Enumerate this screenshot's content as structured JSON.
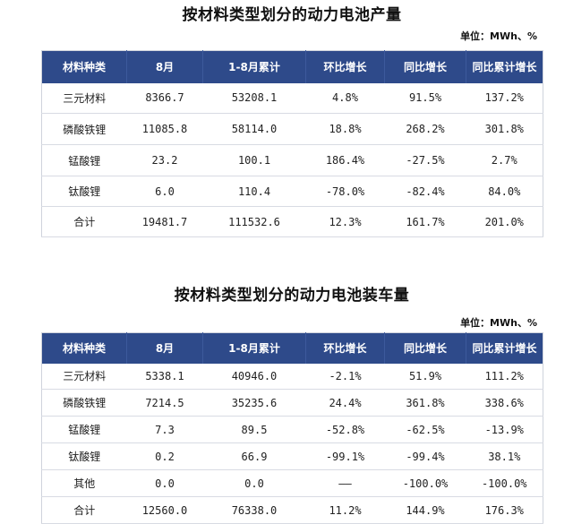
{
  "section1": {
    "title": "按材料类型划分的动力电池产量",
    "unit": "单位：MWh、%",
    "headers": [
      "材料种类",
      "8月",
      "1-8月累计",
      "环比增长",
      "同比增长",
      "同比累计增长"
    ],
    "rows": [
      [
        "三元材料",
        "8366.7",
        "53208.1",
        "4.8%",
        "91.5%",
        "137.2%"
      ],
      [
        "磷酸铁锂",
        "11085.8",
        "58114.0",
        "18.8%",
        "268.2%",
        "301.8%"
      ],
      [
        "锰酸锂",
        "23.2",
        "100.1",
        "186.4%",
        "-27.5%",
        "2.7%"
      ],
      [
        "钛酸锂",
        "6.0",
        "110.4",
        "-78.0%",
        "-82.4%",
        "84.0%"
      ],
      [
        "合计",
        "19481.7",
        "111532.6",
        "12.3%",
        "161.7%",
        "201.0%"
      ]
    ]
  },
  "section2": {
    "title": "按材料类型划分的动力电池装车量",
    "unit": "单位：MWh、%",
    "headers": [
      "材料种类",
      "8月",
      "1-8月累计",
      "环比增长",
      "同比增长",
      "同比累计增长"
    ],
    "rows": [
      [
        "三元材料",
        "5338.1",
        "40946.0",
        "-2.1%",
        "51.9%",
        "111.2%"
      ],
      [
        "磷酸铁锂",
        "7214.5",
        "35235.6",
        "24.4%",
        "361.8%",
        "338.6%"
      ],
      [
        "锰酸锂",
        "7.3",
        "89.5",
        "-52.8%",
        "-62.5%",
        "-13.9%"
      ],
      [
        "钛酸锂",
        "0.2",
        "66.9",
        "-99.1%",
        "-99.4%",
        "38.1%"
      ],
      [
        "其他",
        "0.0",
        "0.0",
        "——",
        "-100.0%",
        "-100.0%"
      ],
      [
        "合计",
        "12560.0",
        "76338.0",
        "11.2%",
        "144.9%",
        "176.3%"
      ]
    ]
  }
}
